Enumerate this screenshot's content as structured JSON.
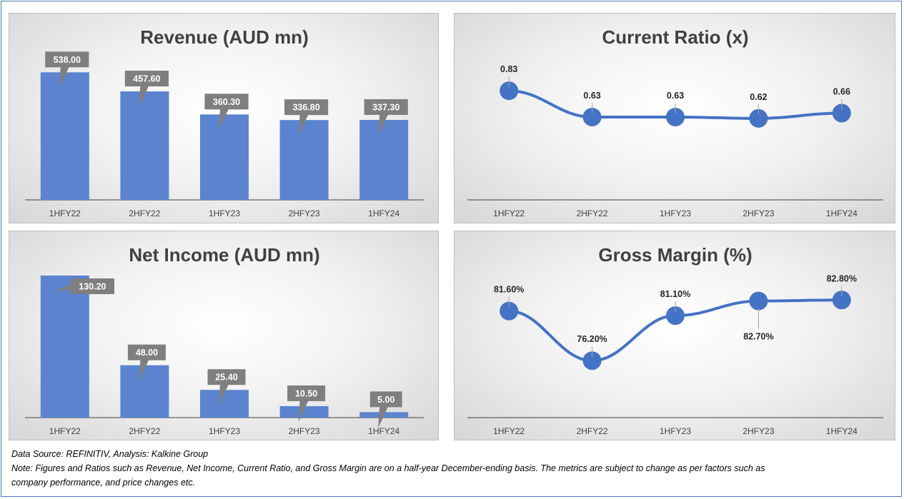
{
  "colors": {
    "bar": "#5b84d0",
    "line": "#4472c4",
    "label_box": "#7f7f7f",
    "label_text": "#ffffff",
    "axis": "#404040"
  },
  "footer": {
    "source": "Data Source: REFINITIV, Analysis: Kalkine Group",
    "note_line1": "Note: Figures and Ratios such as Revenue, Net Income, Current Ratio, and Gross Margin are on a half-year December-ending basis. The metrics are subject to change as per factors such as",
    "note_line2": "company performance, and price changes etc."
  },
  "chart_data": [
    {
      "id": "revenue",
      "type": "bar",
      "title": "Revenue (AUD mn)",
      "categories": [
        "1HFY22",
        "2HFY22",
        "1HFY23",
        "2HFY23",
        "1HFY24"
      ],
      "values": [
        538.0,
        457.6,
        360.3,
        336.8,
        337.3
      ],
      "labels": [
        "538.00",
        "457.60",
        "360.30",
        "336.80",
        "337.30"
      ],
      "ylim": [
        0,
        560
      ],
      "label_style": "callout-box"
    },
    {
      "id": "current-ratio",
      "type": "line",
      "title": "Current Ratio (x)",
      "categories": [
        "1HFY22",
        "2HFY22",
        "1HFY23",
        "2HFY23",
        "1HFY24"
      ],
      "values": [
        0.83,
        0.63,
        0.63,
        0.62,
        0.66
      ],
      "labels": [
        "0.83",
        "0.63",
        "0.63",
        "0.62",
        "0.66"
      ],
      "ylim": [
        0,
        1.2
      ]
    },
    {
      "id": "net-income",
      "type": "bar",
      "title": "Net Income (AUD mn)",
      "categories": [
        "1HFY22",
        "2HFY22",
        "1HFY23",
        "2HFY23",
        "1HFY24"
      ],
      "values": [
        130.2,
        48.0,
        25.4,
        10.5,
        5.0
      ],
      "labels": [
        "130.20",
        "48.00",
        "25.40",
        "10.50",
        "5.00"
      ],
      "ylim": [
        0,
        130.2
      ],
      "label_style": "callout-box"
    },
    {
      "id": "gross-margin",
      "type": "line",
      "title": "Gross Margin (%)",
      "categories": [
        "1HFY22",
        "2HFY22",
        "1HFY23",
        "2HFY23",
        "1HFY24"
      ],
      "values": [
        81.6,
        76.2,
        81.1,
        82.7,
        82.8
      ],
      "labels": [
        "81.60%",
        "76.20%",
        "81.10%",
        "82.70%",
        "82.80%"
      ],
      "ylim": [
        70,
        85
      ]
    }
  ]
}
